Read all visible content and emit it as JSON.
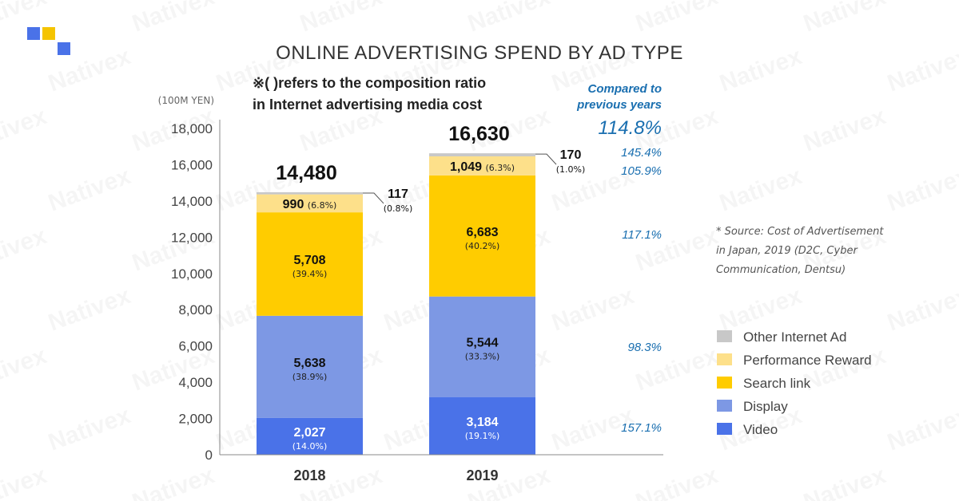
{
  "watermark": "Nativex",
  "colors": {
    "Video": "#4a72e8",
    "Display": "#7d98e4",
    "Search link": "#ffcc00",
    "Performance Reward": "#fde08a",
    "Other Internet Ad": "#c8c8c8",
    "accent_blue": "#1a6fb0"
  },
  "chart_data": {
    "type": "bar",
    "stacked": true,
    "title": "ONLINE ADVERTISING SPEND BY AD TYPE",
    "note_lines": [
      "※(  )refers to the composition ratio",
      "in Internet advertising media cost"
    ],
    "y_unit": "(100M YEN)",
    "ylim": [
      0,
      18000
    ],
    "yticks": [
      "0",
      "2,000",
      "4,000",
      "6,000",
      "8,000",
      "10,000",
      "12,000",
      "14,000",
      "16,000",
      "18,000"
    ],
    "categories": [
      "2018",
      "2019"
    ],
    "totals": [
      14480,
      16630
    ],
    "total_labels": [
      "14,480",
      "16,630"
    ],
    "series": [
      {
        "name": "Video",
        "values": [
          2027,
          3184
        ],
        "labels": [
          "2,027",
          "3,184"
        ],
        "pct": [
          "(14.0%)",
          "(19.1%)"
        ]
      },
      {
        "name": "Display",
        "values": [
          5638,
          5544
        ],
        "labels": [
          "5,638",
          "5,544"
        ],
        "pct": [
          "(38.9%)",
          "(33.3%)"
        ]
      },
      {
        "name": "Search link",
        "values": [
          5708,
          6683
        ],
        "labels": [
          "5,708",
          "6,683"
        ],
        "pct": [
          "(39.4%)",
          "(40.2%)"
        ]
      },
      {
        "name": "Performance Reward",
        "values": [
          990,
          1049
        ],
        "labels": [
          "990",
          "1,049"
        ],
        "pct": [
          "(6.8%)",
          "(6.3%)"
        ]
      },
      {
        "name": "Other Internet Ad",
        "values": [
          117,
          170
        ],
        "labels": [
          "117",
          "170"
        ],
        "pct": [
          "(0.8%)",
          "(1.0%)"
        ]
      }
    ],
    "comparison": {
      "heading": [
        "Compared to",
        "previous years"
      ],
      "total": "114.8%",
      "by_series": {
        "Other Internet Ad": "145.4%",
        "Performance Reward": "105.9%",
        "Search link": "117.1%",
        "Display": "98.3%",
        "Video": "157.1%"
      }
    },
    "source_lines": [
      "* Source: Cost of Advertisement",
      "in Japan, 2019 (D2C, Cyber",
      "Communication, Dentsu)"
    ],
    "legend_order": [
      "Other Internet Ad",
      "Performance Reward",
      "Search link",
      "Display",
      "Video"
    ],
    "legend_placement": "right",
    "grid": false
  }
}
